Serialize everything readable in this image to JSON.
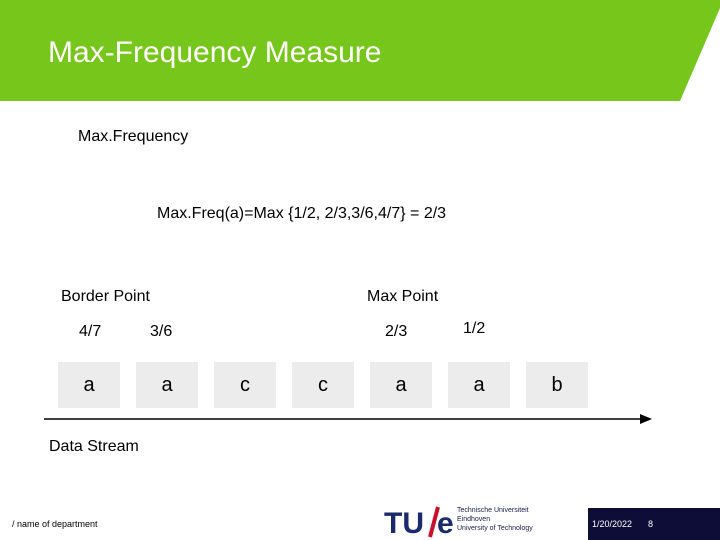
{
  "slide": {
    "title": "Max-Frequency Measure",
    "subtitle": "Max.Frequency",
    "formula": "Max.Freq(a)=Max {1/2, 2/3,3/6,4/7} = 2/3"
  },
  "labels": {
    "border_point": "Border Point",
    "max_point": "Max Point",
    "data_stream": "Data Stream"
  },
  "fractions": [
    "4/7",
    "3/6",
    "2/3",
    "1/2"
  ],
  "stream": [
    "a",
    "a",
    "c",
    "c",
    "a",
    "a",
    "b"
  ],
  "footer": {
    "department": "/ name of department",
    "logo_text": "TU/e",
    "university_lines": [
      "Technische Universiteit",
      "Eindhoven",
      "University of Technology"
    ],
    "date": "1/20/2022",
    "page": "8"
  },
  "colors": {
    "header_green": "#77c61b",
    "box_gray": "#ececec",
    "footer_navy": "#0d0d38",
    "logo_red": "#c8102e"
  }
}
